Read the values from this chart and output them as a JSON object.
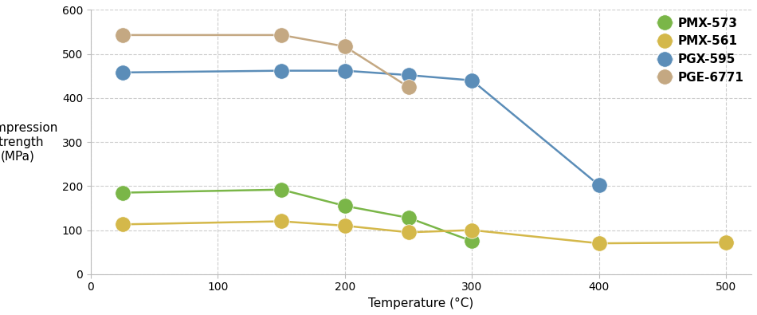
{
  "title": "",
  "xlabel": "Temperature (°C)",
  "ylabel": "Compression\nstrength\n(MPa)",
  "xlim": [
    0,
    520
  ],
  "ylim": [
    0,
    600
  ],
  "xticks": [
    0,
    100,
    200,
    300,
    400,
    500
  ],
  "yticks": [
    0,
    100,
    200,
    300,
    400,
    500,
    600
  ],
  "series": [
    {
      "label": "PMX-573",
      "color": "#7ab648",
      "x": [
        25,
        150,
        200,
        250,
        300
      ],
      "y": [
        185,
        192,
        155,
        128,
        75
      ]
    },
    {
      "label": "PMX-561",
      "color": "#d4b84a",
      "x": [
        25,
        150,
        200,
        250,
        300,
        400,
        500
      ],
      "y": [
        113,
        120,
        110,
        95,
        100,
        70,
        72
      ]
    },
    {
      "label": "PGX-595",
      "color": "#5b8db8",
      "x": [
        25,
        150,
        200,
        250,
        300,
        400
      ],
      "y": [
        458,
        462,
        462,
        452,
        440,
        202
      ]
    },
    {
      "label": "PGE-6771",
      "color": "#c4a882",
      "x": [
        25,
        150,
        200,
        250
      ],
      "y": [
        543,
        543,
        517,
        425
      ]
    }
  ],
  "marker_size": 14,
  "line_width": 1.8,
  "grid_color": "#cccccc",
  "grid_style": "--",
  "bg_color": "#ffffff",
  "legend_fontsize": 11,
  "axis_fontsize": 11,
  "tick_fontsize": 10
}
